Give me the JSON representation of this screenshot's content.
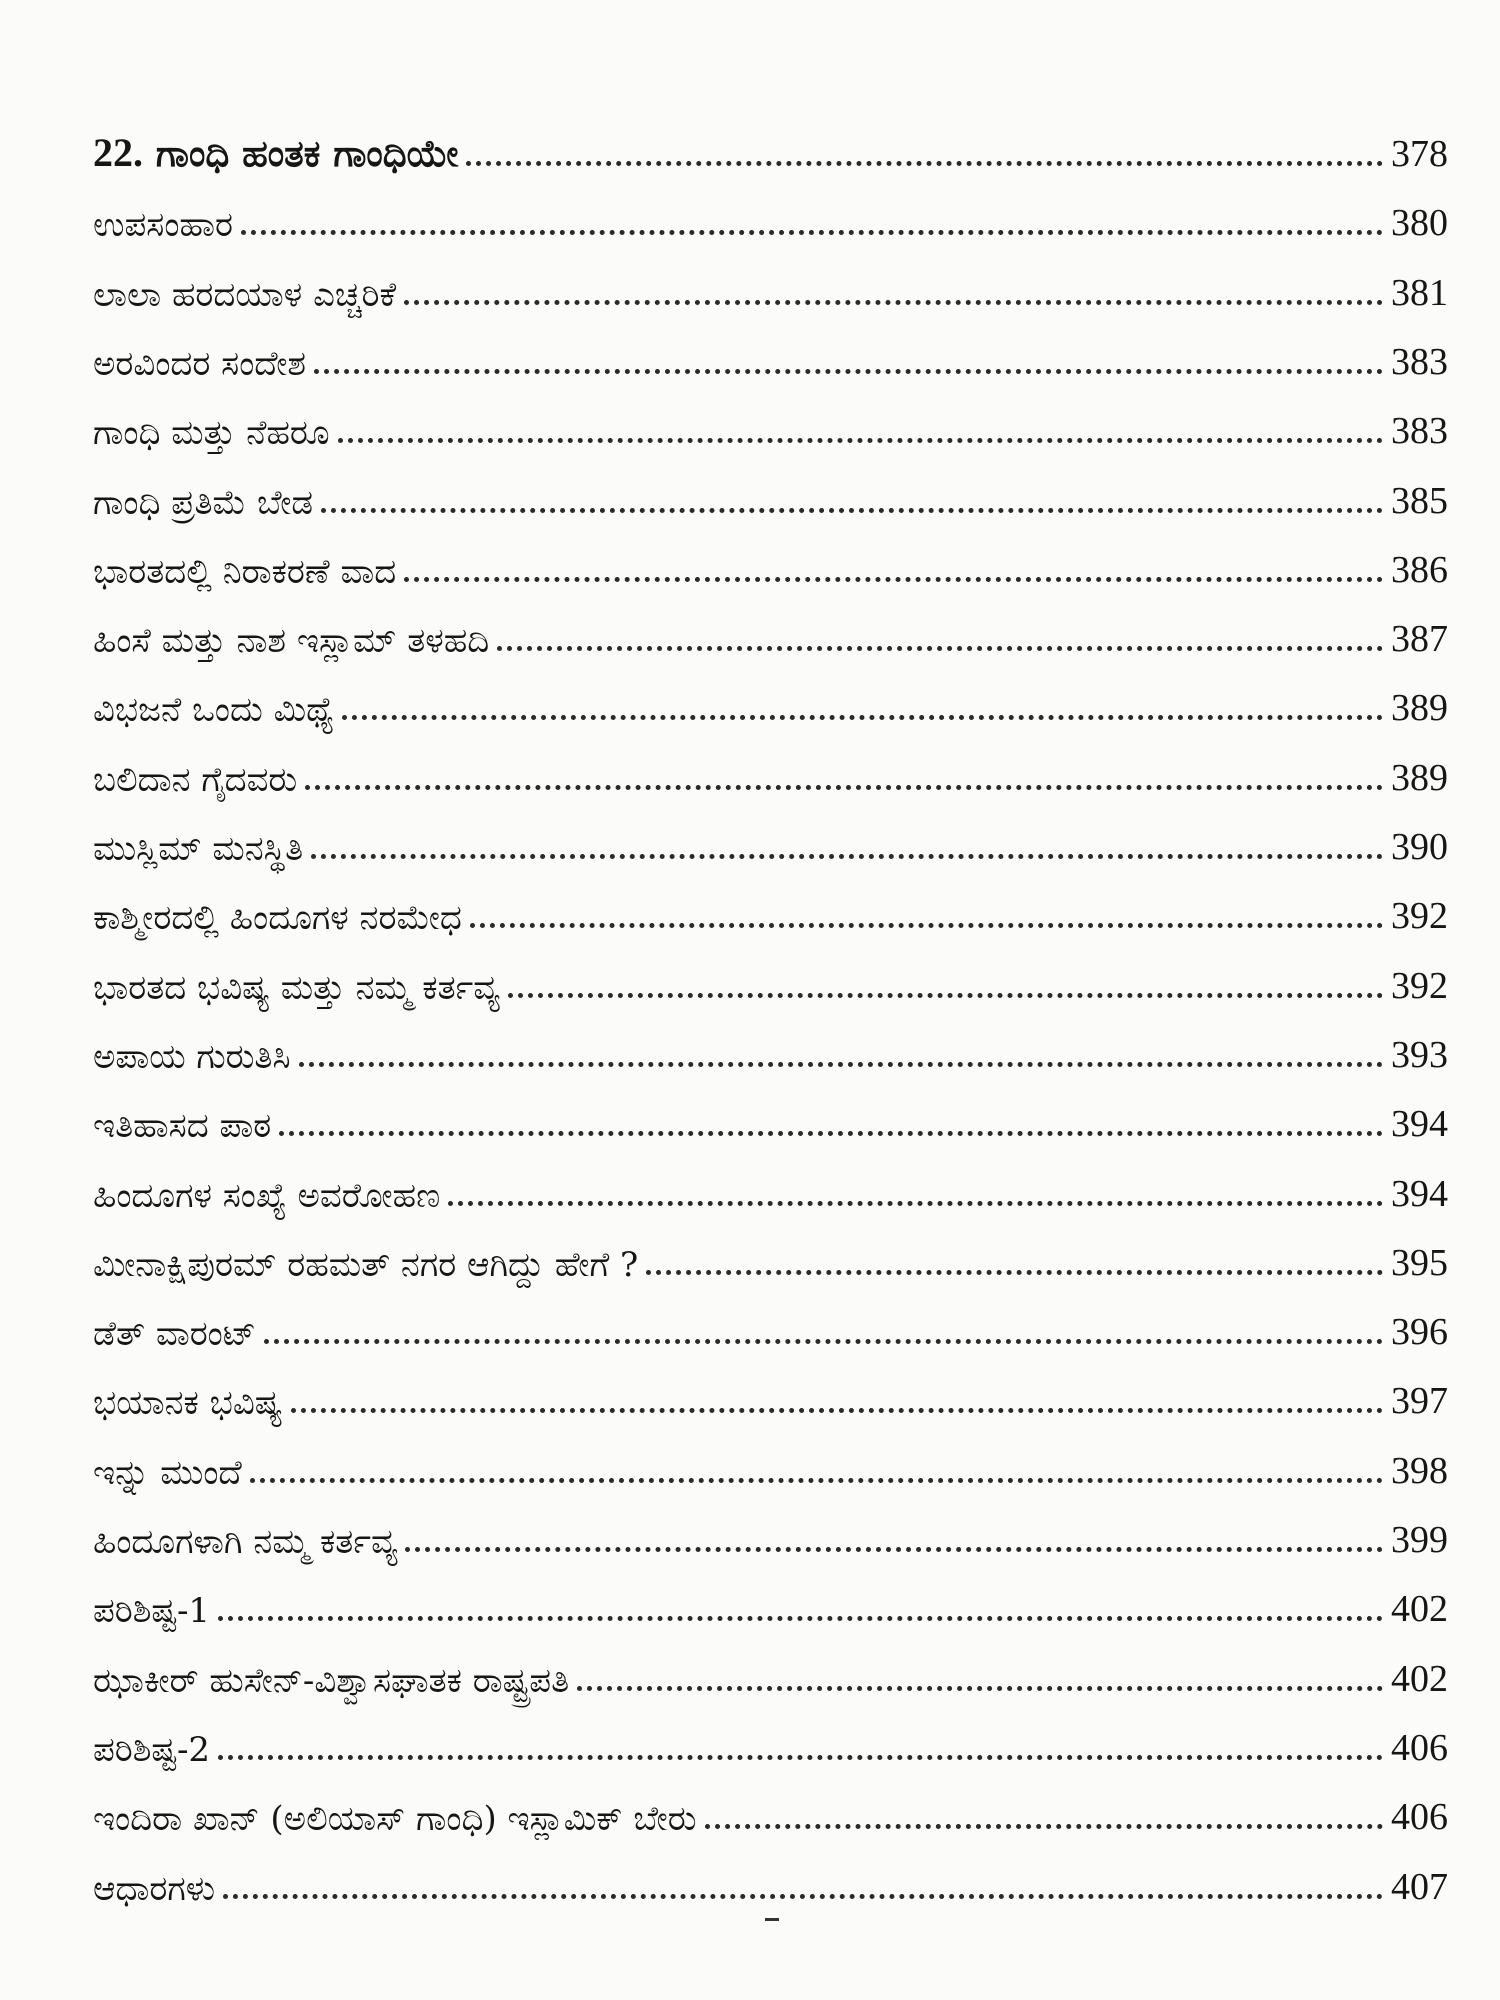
{
  "toc": {
    "chapter": {
      "number": "22.",
      "title": "ಗಾಂಧಿ ಹಂತಕ ಗಾಂಧಿಯೇ",
      "page": "378"
    },
    "entries": [
      {
        "title": "ಉಪಸಂಹಾರ",
        "page": "380"
      },
      {
        "title": "ಲಾಲಾ ಹರದಯಾಳ ಎಚ್ಚರಿಕೆ",
        "page": "381"
      },
      {
        "title": "ಅರವಿಂದರ ಸಂದೇಶ",
        "page": "383"
      },
      {
        "title": "ಗಾಂಧಿ ಮತ್ತು ನೆಹರೂ",
        "page": "383"
      },
      {
        "title": "ಗಾಂಧಿ ಪ್ರತಿಮೆ ಬೇಡ",
        "page": "385"
      },
      {
        "title": "ಭಾರತದಲ್ಲಿ ನಿರಾಕರಣೆ ವಾದ",
        "page": "386"
      },
      {
        "title": "ಹಿಂಸೆ ಮತ್ತು ನಾಶ ಇಸ್ಲಾಮ್ ತಳಹದಿ",
        "page": "387"
      },
      {
        "title": "ವಿಭಜನೆ ಒಂದು ಮಿಥ್ಯೆ",
        "page": "389"
      },
      {
        "title": "ಬಲಿದಾನ ಗೈದವರು",
        "page": "389"
      },
      {
        "title": "ಮುಸ್ಲಿಮ್ ಮನಸ್ಥಿತಿ",
        "page": "390"
      },
      {
        "title": "ಕಾಶ್ಮೀರದಲ್ಲಿ ಹಿಂದೂಗಳ ನರಮೇಧ",
        "page": "392"
      },
      {
        "title": "ಭಾರತದ ಭವಿಷ್ಯ ಮತ್ತು ನಮ್ಮ ಕರ್ತವ್ಯ",
        "page": "392"
      },
      {
        "title": "ಅಪಾಯ ಗುರುತಿಸಿ",
        "page": "393"
      },
      {
        "title": "ಇತಿಹಾಸದ ಪಾಠ",
        "page": "394"
      },
      {
        "title": "ಹಿಂದೂಗಳ ಸಂಖ್ಯೆ ಅವರೋಹಣ",
        "page": "394"
      },
      {
        "title": "ಮೀನಾಕ್ಷಿಪುರಮ್ ರಹಮತ್ ನಗರ ಆಗಿದ್ದು ಹೇಗೆ ?",
        "page": "395"
      },
      {
        "title": "ಡೆತ್ ವಾರಂಟ್",
        "page": "396"
      },
      {
        "title": "ಭಯಾನಕ ಭವಿಷ್ಯ",
        "page": "397"
      },
      {
        "title": "ಇನ್ನು ಮುಂದೆ",
        "page": "398"
      },
      {
        "title": "ಹಿಂದೂಗಳಾಗಿ ನಮ್ಮ ಕರ್ತವ್ಯ",
        "page": "399"
      },
      {
        "title": "ಪರಿಶಿಷ್ಟ-1",
        "page": "402"
      },
      {
        "title": "ಝಾಕೀರ್ ಹುಸೇನ್-ವಿಶ್ವಾಸಘಾತಕ ರಾಷ್ಟ್ರಪತಿ",
        "page": "402"
      },
      {
        "title": "ಪರಿಶಿಷ್ಟ-2",
        "page": "406"
      },
      {
        "title": "ಇಂದಿರಾ ಖಾನ್ (ಅಲಿಯಾಸ್ ಗಾಂಧಿ) ಇಸ್ಲಾಮಿಕ್ ಬೇರು",
        "page": "406"
      },
      {
        "title": "ಆಧಾರಗಳು",
        "page": "407"
      }
    ]
  }
}
